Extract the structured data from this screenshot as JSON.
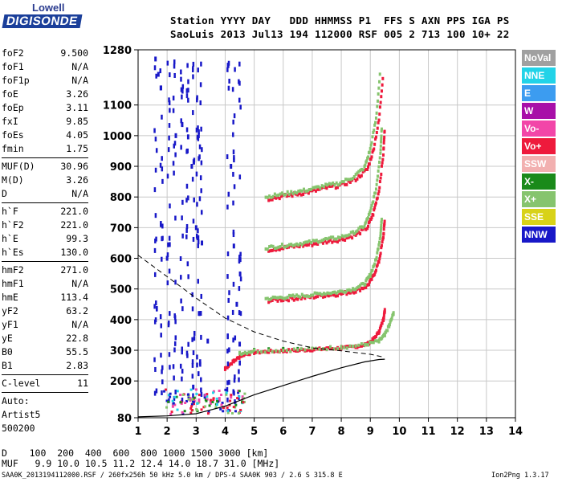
{
  "logo": {
    "line1": "Lowell",
    "line2": "DIGISONDE"
  },
  "header": {
    "line1": "Station YYYY DAY   DDD HHMMSS P1  FFS S AXN PPS IGA PS",
    "line2": "SaoLuis 2013 Jul13 194 112000 RSF 005 2 713 100 10+ 22"
  },
  "params": {
    "groups": [
      [
        {
          "name": "foF2",
          "value": "9.500"
        },
        {
          "name": "foF1",
          "value": "N/A"
        },
        {
          "name": "foF1p",
          "value": "N/A"
        },
        {
          "name": "foE",
          "value": "3.26"
        },
        {
          "name": "foEp",
          "value": "3.11"
        },
        {
          "name": "fxI",
          "value": "9.85"
        },
        {
          "name": "foEs",
          "value": "4.05"
        },
        {
          "name": "fmin",
          "value": "1.75"
        }
      ],
      [
        {
          "name": "MUF(D)",
          "value": "30.96"
        },
        {
          "name": "M(D)",
          "value": "3.26"
        },
        {
          "name": "D",
          "value": "N/A"
        }
      ],
      [
        {
          "name": "h`F",
          "value": "221.0"
        },
        {
          "name": "h`F2",
          "value": "221.0"
        },
        {
          "name": "h`E",
          "value": "99.3"
        },
        {
          "name": "h`Es",
          "value": "130.0"
        }
      ],
      [
        {
          "name": "hmF2",
          "value": "271.0"
        },
        {
          "name": "hmF1",
          "value": "N/A"
        },
        {
          "name": "hmE",
          "value": "113.4"
        },
        {
          "name": "yF2",
          "value": "63.2"
        },
        {
          "name": "yF1",
          "value": "N/A"
        },
        {
          "name": "yE",
          "value": "22.8"
        },
        {
          "name": "B0",
          "value": "55.5"
        },
        {
          "name": "B1",
          "value": "2.83"
        }
      ],
      [
        {
          "name": "C-level",
          "value": "11"
        }
      ],
      [
        {
          "name": "Auto:",
          "value": ""
        },
        {
          "name": "Artist5",
          "value": ""
        },
        {
          "name": "500200",
          "value": ""
        }
      ]
    ]
  },
  "legend": [
    {
      "label": "NoVal",
      "color": "#a0a0a0"
    },
    {
      "label": "NNE",
      "color": "#22d3e8"
    },
    {
      "label": "E",
      "color": "#3c9cf0"
    },
    {
      "label": "W",
      "color": "#a80fa8"
    },
    {
      "label": "Vo-",
      "color": "#f246a8"
    },
    {
      "label": "Vo+",
      "color": "#ee1a3c"
    },
    {
      "label": "SSW",
      "color": "#f2b0b0"
    },
    {
      "label": "X-",
      "color": "#1a8a1a"
    },
    {
      "label": "X+",
      "color": "#86c46e"
    },
    {
      "label": "SSE",
      "color": "#d8d218"
    },
    {
      "label": "NNW",
      "color": "#1818c8"
    }
  ],
  "bottom": {
    "d_line": "D    100  200  400  600  800 1000 1500 3000 [km]",
    "muf_line": "MUF   9.9 10.0 10.5 11.2 12.4 14.0 18.7 31.0 [MHz]"
  },
  "footer": "SAA0K_2013194112000.RSF / 260fx256h 50 kHz 5.0 km / DPS-4 SAA0K 903 / 2.6 S 315.8 E",
  "version": "Ion2Png 1.3.17",
  "chart_data": {
    "type": "scatter",
    "title": "",
    "xlabel": "",
    "ylabel": "",
    "xlim": [
      1,
      14
    ],
    "ylim": [
      80,
      1280
    ],
    "xticks": [
      1,
      2,
      3,
      4,
      5,
      6,
      7,
      8,
      9,
      10,
      11,
      12,
      13,
      14
    ],
    "yticks": [
      80,
      200,
      300,
      400,
      500,
      600,
      700,
      800,
      900,
      1000,
      1100,
      1280
    ],
    "grid": true,
    "series": [
      {
        "name": "Vo+",
        "color": "#ee1a3c",
        "points": [
          [
            4.0,
            240
          ],
          [
            4.3,
            265
          ],
          [
            4.6,
            285
          ],
          [
            5.0,
            293
          ],
          [
            5.5,
            296
          ],
          [
            6.0,
            298
          ],
          [
            6.5,
            300
          ],
          [
            7.0,
            302
          ],
          [
            7.5,
            305
          ],
          [
            8.0,
            307
          ],
          [
            8.5,
            312
          ],
          [
            8.9,
            320
          ],
          [
            9.1,
            335
          ],
          [
            9.3,
            360
          ],
          [
            9.45,
            400
          ],
          [
            9.5,
            430
          ]
        ]
      },
      {
        "name": "X+",
        "color": "#86c46e",
        "points": [
          [
            4.5,
            290
          ],
          [
            5.0,
            298
          ],
          [
            6.0,
            300
          ],
          [
            7.0,
            304
          ],
          [
            8.0,
            310
          ],
          [
            8.8,
            318
          ],
          [
            9.3,
            330
          ],
          [
            9.5,
            350
          ],
          [
            9.65,
            380
          ],
          [
            9.8,
            420
          ]
        ]
      },
      {
        "name": "X-",
        "color": "#1a8a1a",
        "points": [
          [
            5.0,
            300
          ],
          [
            5.5,
            302
          ],
          [
            6.0,
            303
          ],
          [
            6.5,
            303
          ]
        ]
      },
      {
        "name": "NNW",
        "color": "#1818c8",
        "points": [
          [
            1.6,
            1250
          ],
          [
            1.7,
            1200
          ],
          [
            2.0,
            600
          ],
          [
            2.3,
            1000
          ],
          [
            2.5,
            1150
          ],
          [
            2.7,
            950
          ],
          [
            2.85,
            900
          ],
          [
            3.0,
            700
          ],
          [
            3.1,
            420
          ],
          [
            3.2,
            650
          ],
          [
            3.4,
            330
          ],
          [
            4.1,
            1230
          ],
          [
            4.2,
            900
          ],
          [
            4.3,
            640
          ],
          [
            4.4,
            450
          ],
          [
            4.5,
            320
          ],
          [
            2.9,
            180
          ],
          [
            3.3,
            150
          ]
        ]
      },
      {
        "name": "Vo-",
        "color": "#f246a8",
        "points": [
          [
            2.2,
            120
          ],
          [
            2.5,
            130
          ],
          [
            2.8,
            140
          ],
          [
            3.1,
            135
          ],
          [
            3.5,
            130
          ],
          [
            3.8,
            140
          ],
          [
            4.2,
            150
          ],
          [
            4.6,
            145
          ]
        ]
      }
    ],
    "profile_curve": [
      [
        1,
        83
      ],
      [
        2,
        86
      ],
      [
        3,
        93
      ],
      [
        4,
        118
      ],
      [
        5,
        155
      ],
      [
        6,
        185
      ],
      [
        7,
        215
      ],
      [
        8,
        243
      ],
      [
        8.8,
        262
      ],
      [
        9.3,
        270
      ],
      [
        9.5,
        271
      ]
    ],
    "mufd_curve": [
      [
        1,
        610
      ],
      [
        2,
        540
      ],
      [
        3,
        470
      ],
      [
        4,
        405
      ],
      [
        5,
        360
      ],
      [
        6,
        330
      ],
      [
        7,
        308
      ],
      [
        8,
        298
      ],
      [
        9,
        287
      ],
      [
        9.5,
        277
      ]
    ]
  }
}
